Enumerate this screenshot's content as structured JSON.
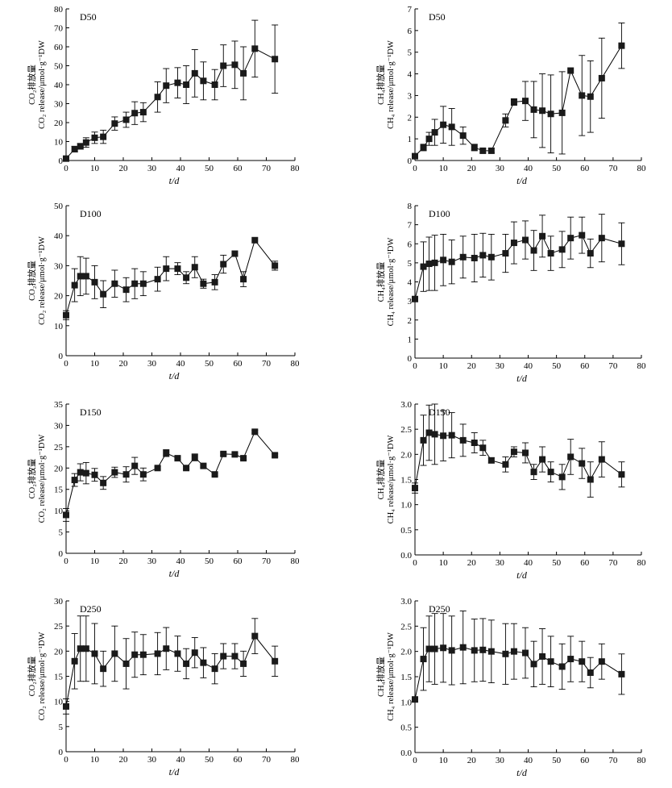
{
  "chart_data": [
    {
      "id": "co2-d50",
      "type": "line",
      "title": "D50",
      "ylabel_cn": "CO₂排放量",
      "ylabel": "CO₂ release/μmol·g⁻¹DW",
      "xlabel": "t/d",
      "xlim": [
        0,
        80
      ],
      "ylim": [
        0,
        80
      ],
      "xticks": [
        0,
        10,
        20,
        30,
        40,
        50,
        60,
        70,
        80
      ],
      "yticks": [
        0,
        10,
        20,
        30,
        40,
        50,
        60,
        70,
        80
      ],
      "x": [
        0,
        3,
        5,
        7,
        10,
        13,
        17,
        21,
        24,
        27,
        32,
        35,
        39,
        42,
        45,
        48,
        52,
        55,
        59,
        62,
        66,
        73
      ],
      "y": [
        1,
        6,
        7.5,
        9.5,
        12,
        12.5,
        19.5,
        21.5,
        25,
        25.5,
        33.5,
        39.5,
        41,
        40,
        46,
        42,
        40,
        50,
        50.5,
        46,
        59,
        53.5
      ],
      "err": [
        1,
        1.5,
        1.5,
        2.5,
        3,
        3.5,
        3.5,
        4,
        6,
        5,
        8,
        9,
        8,
        10,
        12.5,
        10,
        8,
        11,
        12.5,
        14,
        15,
        18
      ]
    },
    {
      "id": "ch4-d50",
      "type": "line",
      "title": "D50",
      "ylabel_cn": "CH₄排放量",
      "ylabel": "CH₄ release/μmol·g⁻¹DW",
      "xlabel": "t/d",
      "xlim": [
        0,
        80
      ],
      "ylim": [
        0,
        7
      ],
      "xticks": [
        0,
        10,
        20,
        30,
        40,
        50,
        60,
        70,
        80
      ],
      "yticks": [
        0,
        1,
        2,
        3,
        4,
        5,
        6,
        7
      ],
      "x": [
        0,
        3,
        5,
        7,
        10,
        13,
        17,
        21,
        24,
        27,
        32,
        35,
        39,
        42,
        45,
        48,
        52,
        55,
        59,
        62,
        66,
        73
      ],
      "y": [
        0.2,
        0.6,
        1.0,
        1.3,
        1.65,
        1.55,
        1.15,
        0.6,
        0.45,
        0.45,
        1.85,
        2.7,
        2.75,
        2.35,
        2.3,
        2.15,
        2.2,
        4.15,
        3.0,
        2.95,
        3.8,
        5.3
      ],
      "err": [
        0.1,
        0.15,
        0.3,
        0.6,
        0.85,
        0.85,
        0.4,
        0.15,
        0.1,
        0.1,
        0.3,
        0.15,
        0.9,
        1.3,
        1.7,
        1.8,
        1.9,
        0,
        1.85,
        1.65,
        1.85,
        1.05
      ]
    },
    {
      "id": "co2-d100",
      "type": "line",
      "title": "D100",
      "ylabel_cn": "CO₂排放量",
      "ylabel": "CO₂ release/μmol·g⁻¹DW",
      "xlabel": "t/d",
      "xlim": [
        0,
        80
      ],
      "ylim": [
        0,
        50
      ],
      "xticks": [
        0,
        10,
        20,
        30,
        40,
        50,
        60,
        70,
        80
      ],
      "yticks": [
        0,
        10,
        20,
        30,
        40,
        50
      ],
      "x": [
        0,
        3,
        5,
        7,
        10,
        13,
        17,
        21,
        24,
        27,
        32,
        35,
        39,
        42,
        45,
        48,
        52,
        55,
        59,
        62,
        66,
        73
      ],
      "y": [
        13.5,
        23.5,
        26.5,
        26.5,
        24.5,
        20.5,
        24,
        22,
        24,
        24,
        25.5,
        29,
        29,
        26,
        29.5,
        24,
        24.5,
        30.5,
        34,
        25.5,
        38.5,
        30
      ],
      "err": [
        1.5,
        5.5,
        6.5,
        6,
        5.5,
        4.5,
        4.5,
        4,
        5,
        4,
        4,
        4,
        2,
        2,
        3.5,
        1.5,
        2.5,
        3,
        0,
        2.5,
        0,
        1.5
      ]
    },
    {
      "id": "ch4-d100",
      "type": "line",
      "title": "D100",
      "ylabel_cn": "CH₄排放量",
      "ylabel": "CH₄ release/μmol·g⁻¹DW",
      "xlabel": "t/d",
      "xlim": [
        0,
        80
      ],
      "ylim": [
        0,
        8
      ],
      "xticks": [
        0,
        10,
        20,
        30,
        40,
        50,
        60,
        70,
        80
      ],
      "yticks": [
        0,
        1,
        2,
        3,
        4,
        5,
        6,
        7,
        8
      ],
      "x": [
        0,
        3,
        5,
        7,
        10,
        13,
        17,
        21,
        24,
        27,
        32,
        35,
        39,
        42,
        45,
        48,
        52,
        55,
        59,
        62,
        66,
        73
      ],
      "y": [
        3.1,
        4.8,
        4.95,
        5.0,
        5.15,
        5.05,
        5.3,
        5.25,
        5.4,
        5.3,
        5.5,
        6.05,
        6.2,
        5.65,
        6.4,
        5.5,
        5.7,
        6.3,
        6.45,
        5.5,
        6.3,
        6.0
      ],
      "err": [
        0,
        1.3,
        1.4,
        1.45,
        1.35,
        1.15,
        1.1,
        1.25,
        1.15,
        1.2,
        1.0,
        1.1,
        1.0,
        1.05,
        1.1,
        0.9,
        0.95,
        1.1,
        0.95,
        0.75,
        1.25,
        1.1
      ]
    },
    {
      "id": "co2-d150",
      "type": "line",
      "title": "D150",
      "ylabel_cn": "CO₂排放量",
      "ylabel": "CO₂ release/μmol·g⁻¹DW",
      "xlabel": "t/d",
      "xlim": [
        0,
        80
      ],
      "ylim": [
        0,
        35
      ],
      "xticks": [
        0,
        10,
        20,
        30,
        40,
        50,
        60,
        70,
        80
      ],
      "yticks": [
        0,
        5,
        10,
        15,
        20,
        25,
        30,
        35
      ],
      "x": [
        0,
        3,
        5,
        7,
        10,
        13,
        17,
        21,
        24,
        27,
        32,
        35,
        39,
        42,
        45,
        48,
        52,
        55,
        59,
        62,
        66,
        73
      ],
      "y": [
        9,
        17.2,
        19,
        18.8,
        18.4,
        16.5,
        19,
        18.5,
        20.5,
        18.5,
        20,
        23.5,
        22.3,
        20,
        22.5,
        20.5,
        18.5,
        23.3,
        23.2,
        22.3,
        28.5,
        23
      ],
      "err": [
        1.5,
        1.5,
        2,
        2.5,
        1.5,
        1.5,
        1.2,
        1.8,
        2,
        1.5,
        0.3,
        0.8,
        0.3,
        0.3,
        0.8,
        0.3,
        0.3,
        0.3,
        0.3,
        0.3,
        0.3,
        0.3
      ]
    },
    {
      "id": "ch4-d150",
      "type": "line",
      "title": "D150",
      "ylabel_cn": "CH₄排放量",
      "ylabel": "CH₄ release/μmol·g⁻¹DW",
      "xlabel": "t/d",
      "xlim": [
        0,
        80
      ],
      "ylim": [
        0,
        3.0
      ],
      "xticks": [
        0,
        10,
        20,
        30,
        40,
        50,
        60,
        70,
        80
      ],
      "yticks": [
        0,
        0.5,
        1.0,
        1.5,
        2.0,
        2.5,
        3.0
      ],
      "x": [
        0,
        3,
        5,
        7,
        10,
        13,
        17,
        21,
        24,
        27,
        32,
        35,
        39,
        42,
        45,
        48,
        52,
        55,
        59,
        62,
        66,
        73
      ],
      "y": [
        1.33,
        2.28,
        2.43,
        2.4,
        2.37,
        2.38,
        2.28,
        2.23,
        2.13,
        1.88,
        1.8,
        2.05,
        2.03,
        1.65,
        1.9,
        1.65,
        1.55,
        1.95,
        1.82,
        1.5,
        1.9,
        1.6
      ],
      "err": [
        0.1,
        0.5,
        0.55,
        0.6,
        0.5,
        0.45,
        0.32,
        0.2,
        0.15,
        0.05,
        0.15,
        0.1,
        0.2,
        0.15,
        0.25,
        0.2,
        0.25,
        0.35,
        0.3,
        0.35,
        0.35,
        0.25
      ]
    },
    {
      "id": "co2-d250",
      "type": "line",
      "title": "D250",
      "ylabel_cn": "CO₂排放量",
      "ylabel": "CO₂ release/μmol·g⁻¹DW",
      "xlabel": "t/d",
      "xlim": [
        0,
        80
      ],
      "ylim": [
        0,
        30
      ],
      "xticks": [
        0,
        10,
        20,
        30,
        40,
        50,
        60,
        70,
        80
      ],
      "yticks": [
        0,
        5,
        10,
        15,
        20,
        25,
        30
      ],
      "x": [
        0,
        3,
        5,
        7,
        10,
        13,
        17,
        21,
        24,
        27,
        32,
        35,
        39,
        42,
        45,
        48,
        52,
        55,
        59,
        62,
        66,
        73
      ],
      "y": [
        9,
        18,
        20.5,
        20.5,
        19.5,
        16.5,
        19.5,
        17.5,
        19.3,
        19.3,
        19.5,
        20.5,
        19.5,
        17.5,
        19.7,
        17.7,
        16.5,
        19,
        19,
        17.5,
        23,
        18
      ],
      "err": [
        1.5,
        5.5,
        6.5,
        6.5,
        6,
        3.5,
        5.5,
        5,
        4.5,
        4,
        4.2,
        4.2,
        3.5,
        3,
        3,
        3,
        3,
        2.5,
        2.5,
        2.5,
        3.5,
        3
      ]
    },
    {
      "id": "ch4-d250",
      "type": "line",
      "title": "D250",
      "ylabel_cn": "CH₄排放量",
      "ylabel": "CH₄ release/μmol·g⁻¹DW",
      "xlabel": "t/d",
      "xlim": [
        0,
        80
      ],
      "ylim": [
        0,
        3.0
      ],
      "xticks": [
        0,
        10,
        20,
        30,
        40,
        50,
        60,
        70,
        80
      ],
      "yticks": [
        0,
        0.5,
        1.0,
        1.5,
        2.0,
        2.5,
        3.0
      ],
      "x": [
        0,
        3,
        5,
        7,
        10,
        13,
        17,
        21,
        24,
        27,
        32,
        35,
        39,
        42,
        45,
        48,
        52,
        55,
        59,
        62,
        66,
        73
      ],
      "y": [
        1.05,
        1.85,
        2.05,
        2.05,
        2.07,
        2.02,
        2.08,
        2.02,
        2.03,
        2.0,
        1.95,
        2.0,
        1.97,
        1.75,
        1.9,
        1.8,
        1.7,
        1.85,
        1.8,
        1.58,
        1.8,
        1.55
      ],
      "err": [
        0.05,
        0.62,
        0.65,
        0.7,
        0.68,
        0.68,
        0.72,
        0.62,
        0.62,
        0.62,
        0.6,
        0.55,
        0.5,
        0.45,
        0.55,
        0.5,
        0.45,
        0.45,
        0.4,
        0.3,
        0.35,
        0.4
      ]
    }
  ]
}
